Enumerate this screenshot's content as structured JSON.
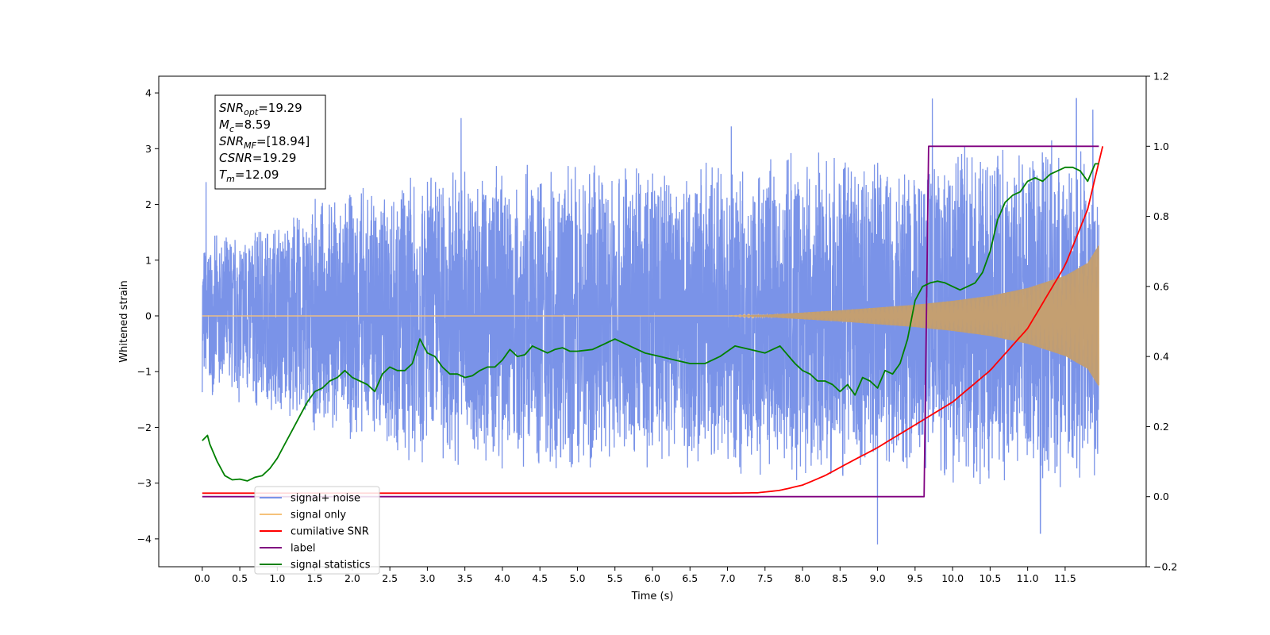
{
  "chart_data": {
    "type": "line",
    "xlabel": "Time (s)",
    "ylabel": "Whitened strain",
    "xlim": [
      -0.58,
      12.58
    ],
    "ylim": [
      -4.5,
      4.3
    ],
    "y2lim": [
      -0.2,
      1.2
    ],
    "x_ticks": [
      "0.0",
      "0.5",
      "1.0",
      "1.5",
      "2.0",
      "2.5",
      "3.0",
      "3.5",
      "4.0",
      "4.5",
      "5.0",
      "5.5",
      "6.0",
      "6.5",
      "7.0",
      "7.5",
      "8.0",
      "8.5",
      "9.0",
      "9.5",
      "10.0",
      "10.5",
      "11.0",
      "11.5"
    ],
    "y_ticks": [
      "4",
      "3",
      "2",
      "1",
      "0",
      "−1",
      "−2",
      "−3",
      "−4"
    ],
    "y2_ticks": [
      "1.2",
      "1.0",
      "0.8",
      "0.6",
      "0.4",
      "0.2",
      "0.0",
      "−0.2"
    ],
    "annotation": {
      "lines": [
        {
          "sym": "SNR",
          "sub": "opt",
          "value": "=19.29"
        },
        {
          "sym": "M",
          "sub": "c",
          "value": "=8.59"
        },
        {
          "sym": "SNR",
          "sub": "MF",
          "value": "=[18.94]"
        },
        {
          "sym": "CSNR",
          "sub": "",
          "value": "=19.29"
        },
        {
          "sym": "T",
          "sub": "m",
          "value": "=12.09"
        }
      ]
    },
    "legend": {
      "placement": "lower-left",
      "entries": [
        {
          "label": "signal+ noise",
          "color": "#7a93e8"
        },
        {
          "label": "signal only",
          "color": "#f5c27a"
        },
        {
          "label": "cumilative SNR",
          "color": "#ff0000"
        },
        {
          "label": "label",
          "color": "#800080"
        },
        {
          "label": "signal statistics",
          "color": "#008000"
        }
      ]
    },
    "series": [
      {
        "name": "signal+ noise",
        "axis": "left",
        "color": "#7a93e8",
        "envelope": {
          "x": [
            0.0,
            3.0,
            6.0,
            8.0,
            9.0,
            10.0,
            11.0,
            12.0
          ],
          "upper": [
            1.4,
            2.8,
            2.9,
            3.0,
            3.0,
            3.1,
            3.2,
            3.3
          ],
          "lower": [
            -1.4,
            -2.8,
            -2.9,
            -3.0,
            -3.0,
            -3.1,
            -3.2,
            -3.3
          ]
        },
        "peaks": {
          "x": [
            0.05,
            3.45,
            7.05,
            9.0,
            9.73,
            11.17,
            11.65,
            11.87
          ],
          "y": [
            2.4,
            3.55,
            3.4,
            -4.1,
            3.9,
            -3.9,
            3.9,
            3.7
          ]
        }
      },
      {
        "name": "signal only",
        "axis": "left",
        "color": "#f5c27a",
        "envelope": {
          "x": [
            0.0,
            7.0,
            7.5,
            8.0,
            8.5,
            9.0,
            9.5,
            10.0,
            10.5,
            11.0,
            11.5,
            11.8,
            12.0
          ],
          "amplitude": [
            0.0,
            0.0,
            0.02,
            0.06,
            0.1,
            0.15,
            0.2,
            0.27,
            0.36,
            0.5,
            0.72,
            0.95,
            1.38
          ]
        }
      },
      {
        "name": "cumilative SNR",
        "axis": "right",
        "color": "#ff0000",
        "x": [
          0.0,
          7.0,
          7.4,
          7.7,
          8.0,
          8.3,
          8.6,
          9.0,
          9.5,
          10.0,
          10.5,
          11.0,
          11.5,
          11.8,
          12.0
        ],
        "y": [
          0.01,
          0.01,
          0.011,
          0.018,
          0.033,
          0.06,
          0.095,
          0.14,
          0.205,
          0.27,
          0.36,
          0.48,
          0.66,
          0.82,
          1.0
        ]
      },
      {
        "name": "label",
        "axis": "right",
        "color": "#800080",
        "x": [
          0.0,
          9.62,
          9.68,
          11.95
        ],
        "y": [
          0.0,
          0.0,
          1.0,
          1.0
        ]
      },
      {
        "name": "signal statistics",
        "axis": "right",
        "color": "#008000",
        "x": [
          0.0,
          0.07,
          0.1,
          0.2,
          0.3,
          0.4,
          0.5,
          0.6,
          0.7,
          0.8,
          0.9,
          1.0,
          1.1,
          1.2,
          1.3,
          1.4,
          1.5,
          1.6,
          1.7,
          1.8,
          1.9,
          2.0,
          2.1,
          2.2,
          2.3,
          2.4,
          2.5,
          2.6,
          2.7,
          2.8,
          2.9,
          3.0,
          3.1,
          3.2,
          3.3,
          3.4,
          3.5,
          3.6,
          3.7,
          3.8,
          3.9,
          4.0,
          4.1,
          4.2,
          4.3,
          4.4,
          4.5,
          4.6,
          4.7,
          4.8,
          4.9,
          5.0,
          5.2,
          5.4,
          5.5,
          5.7,
          5.9,
          6.1,
          6.3,
          6.5,
          6.7,
          6.9,
          7.1,
          7.3,
          7.5,
          7.7,
          7.9,
          8.0,
          8.1,
          8.2,
          8.3,
          8.4,
          8.5,
          8.6,
          8.7,
          8.8,
          8.9,
          9.0,
          9.1,
          9.2,
          9.3,
          9.4,
          9.5,
          9.6,
          9.7,
          9.8,
          9.9,
          10.0,
          10.1,
          10.2,
          10.3,
          10.4,
          10.5,
          10.6,
          10.7,
          10.8,
          10.9,
          11.0,
          11.1,
          11.2,
          11.3,
          11.4,
          11.5,
          11.6,
          11.7,
          11.8,
          11.9,
          11.95
        ],
        "y": [
          0.16,
          0.175,
          0.15,
          0.1,
          0.06,
          0.048,
          0.05,
          0.045,
          0.055,
          0.06,
          0.08,
          0.11,
          0.15,
          0.19,
          0.23,
          0.27,
          0.3,
          0.31,
          0.33,
          0.34,
          0.36,
          0.34,
          0.33,
          0.32,
          0.3,
          0.35,
          0.37,
          0.36,
          0.36,
          0.38,
          0.45,
          0.41,
          0.4,
          0.37,
          0.35,
          0.35,
          0.34,
          0.345,
          0.36,
          0.37,
          0.37,
          0.39,
          0.42,
          0.4,
          0.405,
          0.43,
          0.42,
          0.41,
          0.42,
          0.425,
          0.415,
          0.415,
          0.42,
          0.44,
          0.45,
          0.43,
          0.41,
          0.4,
          0.39,
          0.38,
          0.38,
          0.4,
          0.43,
          0.42,
          0.41,
          0.43,
          0.38,
          0.36,
          0.35,
          0.33,
          0.33,
          0.32,
          0.3,
          0.32,
          0.29,
          0.34,
          0.33,
          0.31,
          0.36,
          0.35,
          0.38,
          0.45,
          0.56,
          0.6,
          0.61,
          0.615,
          0.61,
          0.6,
          0.59,
          0.6,
          0.61,
          0.64,
          0.7,
          0.79,
          0.84,
          0.86,
          0.87,
          0.9,
          0.91,
          0.9,
          0.92,
          0.93,
          0.94,
          0.94,
          0.93,
          0.9,
          0.95,
          0.95
        ]
      }
    ]
  }
}
